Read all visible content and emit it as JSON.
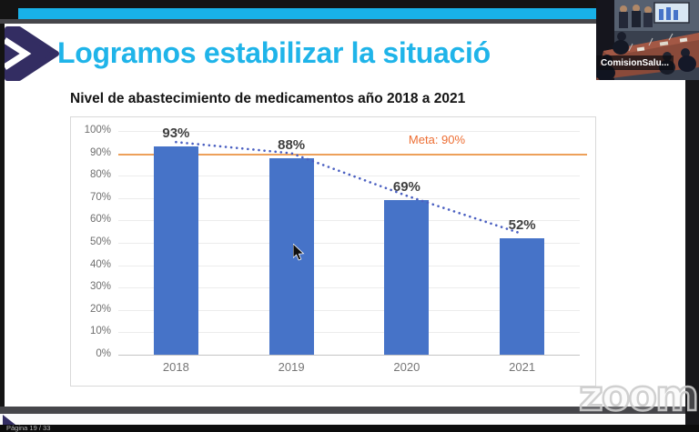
{
  "window": {
    "watermark": "zoom",
    "page_indicator": "Página 19 / 33"
  },
  "video_thumbnail": {
    "participant_label": "ComisionSalu..."
  },
  "slide": {
    "title": "Logramos estabilizar la situació",
    "accent_color": "#1FB4E9",
    "logo_color": "#332D62"
  },
  "icons": {
    "slide_logo": "chevron-right-arrow",
    "pointer": "mouse-arrow-cursor"
  },
  "chart_data": {
    "type": "bar",
    "title": "Nivel de abastecimiento de medicamentos año 2018 a 2021",
    "categories": [
      "2018",
      "2019",
      "2020",
      "2021"
    ],
    "values": [
      93,
      88,
      69,
      52
    ],
    "data_labels": [
      "93%",
      "88%",
      "69%",
      "52%"
    ],
    "xlabel": "",
    "ylabel": "",
    "ylim": [
      0,
      100
    ],
    "ytick_labels": [
      "0%",
      "10%",
      "20%",
      "30%",
      "40%",
      "50%",
      "60%",
      "70%",
      "80%",
      "90%",
      "100%"
    ],
    "grid": true,
    "legend": "none",
    "bar_color": "#4673C8",
    "target_line": {
      "value": 90,
      "label": "Meta: 90%",
      "color": "#ED6E33",
      "line_color": "#EDA05A"
    },
    "trendline": {
      "style": "dotted",
      "color": "#4A5FC1",
      "direction": "descending"
    }
  }
}
